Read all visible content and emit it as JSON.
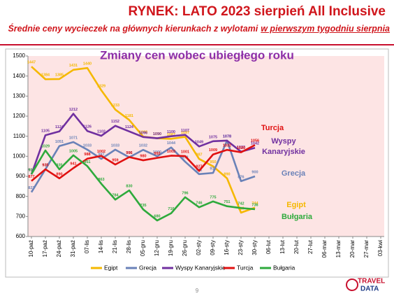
{
  "header": {
    "title": "RYNEK: LATO 2023 sierpień All Inclusive",
    "subtitle_parts": [
      "Średnie ceny wycieczek na głównych kierunkach z wylotami",
      "w pierwszym tygodniu sierpnia"
    ]
  },
  "chart_data": {
    "type": "line",
    "title": "Zmiany cen wobec ubiegłego roku",
    "categories": [
      "10-paź",
      "17-paź",
      "24-paź",
      "31-paź",
      "07-lis",
      "14-lis",
      "21-lis",
      "28-lis",
      "05-gru",
      "12-gru",
      "19-gru",
      "26-gru",
      "02-sty",
      "09-sty",
      "16-sty",
      "23-sty",
      "30-sty",
      "06-lut",
      "13-lut",
      "20-lut",
      "27-lut",
      "06-mar",
      "13-mar",
      "20-mar",
      "27-mar",
      "03-kwi"
    ],
    "series": [
      {
        "name": "Egipt",
        "color": "#f5b800",
        "values": [
          1447,
          1384,
          1385,
          1431,
          1440,
          1329,
          1233,
          1181,
          1098,
          1090,
          1087,
          1097,
          987,
          950,
          890,
          719,
          744,
          null,
          null,
          null,
          null,
          null,
          null,
          null,
          null,
          null
        ]
      },
      {
        "name": "Grecja",
        "color": "#6a82b8",
        "values": [
          821,
          935,
          1051,
          1071,
          1033,
          987,
          1033,
          995,
          1032,
          1000,
          1044,
          973,
          911,
          917,
          1078,
          876,
          900,
          null,
          null,
          null,
          null,
          null,
          null,
          null,
          null,
          null
        ]
      },
      {
        "name": "Wyspy Kanaryjskie",
        "color": "#7030a0",
        "values": [
          910,
          1105,
          1124,
          1212,
          1126,
          1102,
          1152,
          1124,
          1096,
          1090,
          1100,
          1107,
          1049,
          1075,
          1078,
          1023,
          1042,
          null,
          null,
          null,
          null,
          null,
          null,
          null,
          null,
          null
        ]
      },
      {
        "name": "Turcja",
        "color": "#e01010",
        "values": [
          877,
          935,
          890,
          941,
          988,
          1002,
          959,
          996,
          980,
          992,
          1003,
          1001,
          927,
          1009,
          1032,
          1020,
          1056,
          null,
          null,
          null,
          null,
          null,
          null,
          null,
          null,
          null
        ]
      },
      {
        "name": "Bułgaria",
        "color": "#2eaa3c",
        "values": [
          911,
          1029,
          935,
          1005,
          951,
          863,
          784,
          830,
          735,
          680,
          716,
          796,
          746,
          775,
          751,
          742,
          736,
          null,
          null,
          null,
          null,
          null,
          null,
          null,
          null,
          null
        ]
      }
    ],
    "ylim": [
      600,
      1500
    ],
    "yticks": [
      600,
      700,
      800,
      900,
      1000,
      1100,
      1200,
      1300,
      1400,
      1500
    ],
    "grid": false,
    "legend": "bottom",
    "annotations": [
      {
        "lines": [
          "Turcja"
        ],
        "color": "#e01010"
      },
      {
        "lines": [
          "Wyspy",
          "Kanaryjskie"
        ],
        "color": "#7030a0"
      },
      {
        "lines": [
          "Grecja"
        ],
        "color": "#6a82b8"
      },
      {
        "lines": [
          "Egipt"
        ],
        "color": "#f5b800"
      },
      {
        "lines": [
          "Bułgaria"
        ],
        "color": "#2eaa3c"
      }
    ]
  },
  "footer": {
    "page_number": "9",
    "logo": [
      "TRAVEL",
      "DATA"
    ]
  }
}
